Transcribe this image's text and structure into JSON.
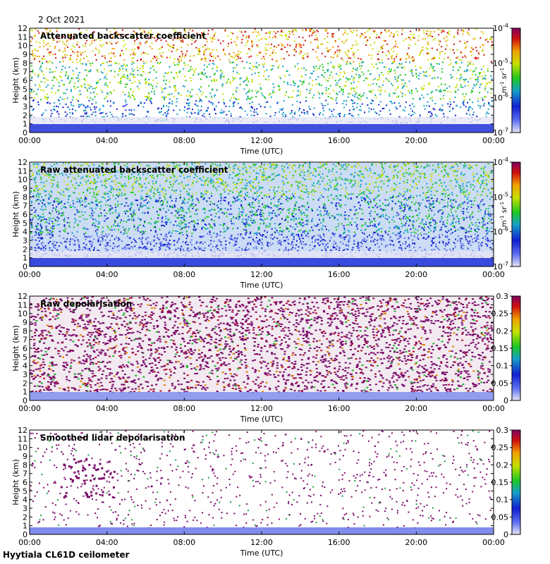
{
  "date": "2 Oct 2021",
  "footer": "Hyytiala CL61D ceilometer",
  "chart_data": [
    {
      "type": "heatmap",
      "title": "Attenuated backscatter coefficient",
      "xlabel": "Time (UTC)",
      "ylabel": "Height (km)",
      "xticks": [
        "00:00",
        "04:00",
        "08:00",
        "12:00",
        "16:00",
        "20:00",
        "00:00"
      ],
      "yticks": [
        0,
        1,
        2,
        3,
        4,
        5,
        6,
        7,
        8,
        9,
        10,
        11,
        12
      ],
      "ylim": [
        0,
        12
      ],
      "colorbar": {
        "scale": "log",
        "range": [
          1e-07,
          0.0001
        ],
        "ticks": [
          "10-7",
          "10-6",
          "10-5",
          "10-4"
        ],
        "unit": "m-1 sr-1"
      }
    },
    {
      "type": "heatmap",
      "title": "Raw attenuated backscatter coefficient",
      "xlabel": "Time (UTC)",
      "ylabel": "Height (km)",
      "xticks": [
        "00:00",
        "04:00",
        "08:00",
        "12:00",
        "16:00",
        "20:00",
        "00:00"
      ],
      "yticks": [
        0,
        1,
        2,
        3,
        4,
        5,
        6,
        7,
        8,
        9,
        10,
        11,
        12
      ],
      "ylim": [
        0,
        12
      ],
      "colorbar": {
        "scale": "log",
        "range": [
          1e-07,
          0.0001
        ],
        "ticks": [
          "10-7",
          "10-6",
          "10-5",
          "10-4"
        ],
        "unit": "m-1 sr-1"
      }
    },
    {
      "type": "heatmap",
      "title": "Raw depolarisation",
      "xlabel": "Time (UTC)",
      "ylabel": "Height (km)",
      "xticks": [
        "00:00",
        "04:00",
        "08:00",
        "12:00",
        "16:00",
        "20:00",
        "00:00"
      ],
      "yticks": [
        0,
        1,
        2,
        3,
        4,
        5,
        6,
        7,
        8,
        9,
        10,
        11,
        12
      ],
      "ylim": [
        0,
        12
      ],
      "colorbar": {
        "scale": "linear",
        "range": [
          0,
          0.3
        ],
        "ticks": [
          "0",
          "0.05",
          "0.1",
          "0.15",
          "0.2",
          "0.25",
          "0.3"
        ],
        "unit": ""
      }
    },
    {
      "type": "heatmap",
      "title": "Smoothed lidar depolarisation",
      "xlabel": "Time (UTC)",
      "ylabel": "Height (km)",
      "xticks": [
        "00:00",
        "04:00",
        "08:00",
        "12:00",
        "16:00",
        "20:00",
        "00:00"
      ],
      "yticks": [
        0,
        1,
        2,
        3,
        4,
        5,
        6,
        7,
        8,
        9,
        10,
        11,
        12
      ],
      "ylim": [
        0,
        12
      ],
      "colorbar": {
        "scale": "linear",
        "range": [
          0,
          0.3
        ],
        "ticks": [
          "0",
          "0.05",
          "0.1",
          "0.15",
          "0.2",
          "0.25",
          "0.3"
        ],
        "unit": ""
      }
    }
  ]
}
